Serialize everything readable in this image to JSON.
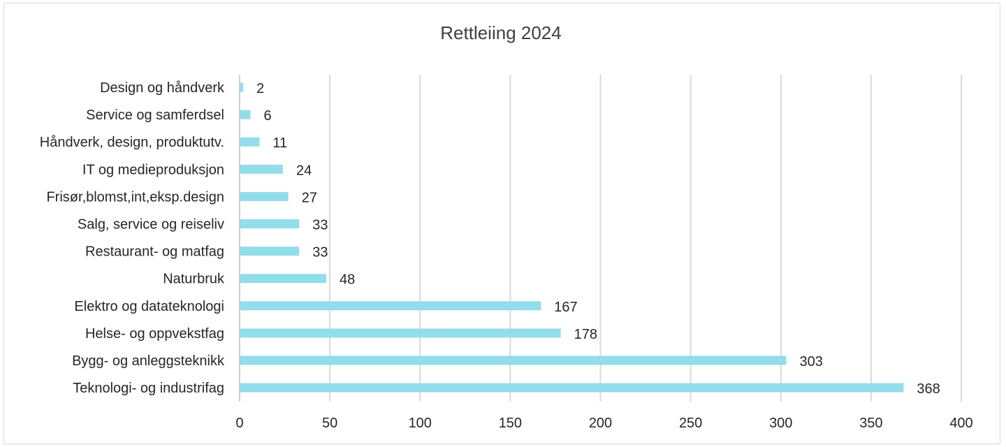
{
  "chart_data": {
    "type": "bar",
    "orientation": "horizontal",
    "title": "Rettleiing 2024",
    "xlabel": "",
    "ylabel": "",
    "xlim": [
      0,
      400
    ],
    "x_ticks": [
      "0",
      "50",
      "100",
      "150",
      "200",
      "250",
      "300",
      "350",
      "400"
    ],
    "grid": "vertical",
    "legend": "none",
    "bar_color": "#92DDEA",
    "categories": [
      "Design og håndverk",
      "Service og samferdsel",
      "Håndverk, design, produktutv.",
      "IT og medieproduksjon",
      "Frisør,blomst,int,eksp.design",
      "Salg, service og reiseliv",
      "Restaurant- og matfag",
      "Naturbruk",
      "Elektro og datateknologi",
      "Helse- og oppvekstfag",
      "Bygg- og anleggsteknikk",
      "Teknologi- og industrifag"
    ],
    "values": [
      2,
      6,
      11,
      24,
      27,
      33,
      33,
      48,
      167,
      178,
      303,
      368
    ]
  }
}
